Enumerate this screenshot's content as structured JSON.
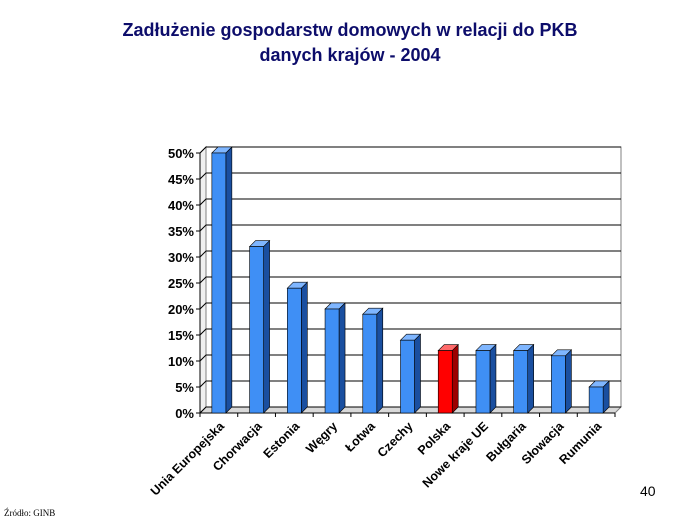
{
  "slide": {
    "title_line1": "Zadłużenie gospodarstw domowych w relacji do PKB",
    "title_line2": "danych krajów - 2004",
    "source": "Źródło: GINB",
    "page_number": "40"
  },
  "chart_data": {
    "type": "bar",
    "title": "Zadłużenie gospodarstw domowych w relacji do PKB danych krajów - 2004",
    "xlabel": "",
    "ylabel": "",
    "categories": [
      "Unia Europejska",
      "Chorwacja",
      "Estonia",
      "Węgry",
      "Łotwa",
      "Czechy",
      "Polska",
      "Nowe kraje UE",
      "Bułgaria",
      "Słowacja",
      "Rumunia"
    ],
    "values": [
      50,
      32,
      24,
      20,
      19,
      14,
      12,
      12,
      12,
      11,
      5
    ],
    "ylim": [
      0,
      50
    ],
    "yticks": [
      0,
      5,
      10,
      15,
      20,
      25,
      30,
      35,
      40,
      45,
      50
    ],
    "tick_suffix": "%",
    "grid": true,
    "legend": "none",
    "colors": {
      "bar": "#3f8ff5",
      "bar_dark": "#1a4fa0",
      "bar_top": "#7fb6ff",
      "highlight": "#ff0000",
      "highlight_dark": "#9c0000",
      "highlight_top": "#ff6a6a",
      "highlight_category": "Polska"
    }
  }
}
